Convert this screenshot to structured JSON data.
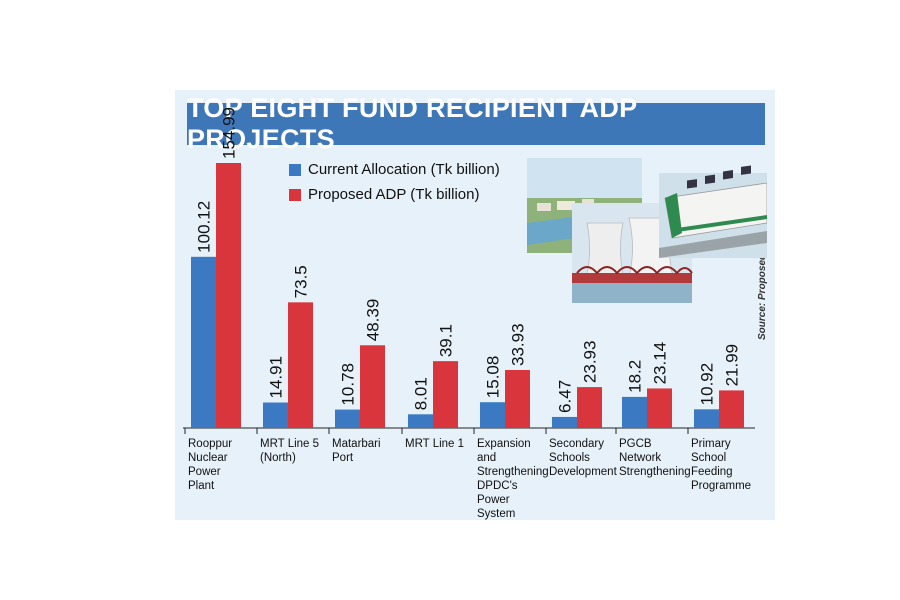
{
  "title": "TOP EIGHT FUND RECIPIENT ADP PROJECTS",
  "legend": {
    "current": "Current Allocation (Tk billion)",
    "proposed": "Proposed ADP (Tk billion)"
  },
  "source": "Source: Proposed ADP Book",
  "colors": {
    "current": "#3b7ac2",
    "proposed": "#d8363c",
    "title_bg": "#3e77b7",
    "panel_bg": "#e7f1f9"
  },
  "photos": [
    "power-plant-render",
    "cooling-towers",
    "metro-train"
  ],
  "chart_data": {
    "type": "bar",
    "title": "TOP EIGHT FUND RECIPIENT ADP PROJECTS",
    "categories": [
      "Rooppur Nuclear Power Plant",
      "MRT Line 5 (North)",
      "Matarbari Port",
      "MRT Line 1",
      "Expansion and Strengthening DPDC's Power System",
      "Secondary Schools Development",
      "PGCB Network Strengthening",
      "Primary School Feeding Programme"
    ],
    "category_lines": [
      [
        "Rooppur",
        "Nuclear",
        "Power",
        "Plant"
      ],
      [
        "MRT Line 5",
        "(North)"
      ],
      [
        "Matarbari",
        "Port"
      ],
      [
        "MRT Line 1"
      ],
      [
        "Expansion and",
        "Strengthening",
        "DPDC's",
        "Power System"
      ],
      [
        "Secondary",
        "Schools",
        "Development"
      ],
      [
        "PGCB",
        "Network",
        "Strengthening"
      ],
      [
        "Primary",
        "School",
        "Feeding",
        "Programme"
      ]
    ],
    "series": [
      {
        "name": "Current Allocation (Tk billion)",
        "values": [
          100.12,
          14.91,
          10.78,
          8.01,
          15.08,
          6.47,
          18.2,
          10.92
        ],
        "labels": [
          "100.12",
          "14.91",
          "10.78",
          "8.01",
          "15.08",
          "6.47",
          "18.2",
          "10.92"
        ]
      },
      {
        "name": "Proposed ADP (Tk billion)",
        "values": [
          154.99,
          73.5,
          48.39,
          39.1,
          33.93,
          23.93,
          23.14,
          21.99
        ],
        "labels": [
          "154.99",
          "73.5",
          "48.39",
          "39.1",
          "33.93",
          "23.93",
          "23.14",
          "21.99"
        ]
      }
    ],
    "ylim": [
      0,
      154.99
    ],
    "grid": false,
    "legend_position": "top-left"
  }
}
